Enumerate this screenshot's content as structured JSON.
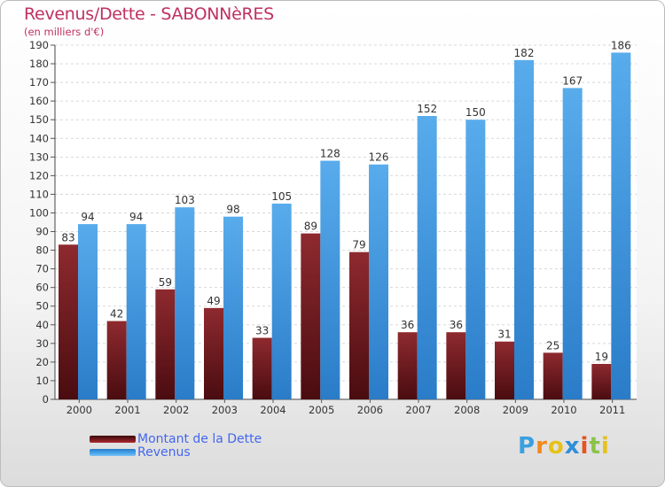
{
  "chart_data": {
    "type": "bar",
    "title": "Revenus/Dette - SABONNèRES",
    "subtitle": "(en milliers d'€)",
    "categories": [
      "2000",
      "2001",
      "2002",
      "2003",
      "2004",
      "2005",
      "2006",
      "2007",
      "2008",
      "2009",
      "2010",
      "2011"
    ],
    "series": [
      {
        "name": "Montant de la Dette",
        "color": "#7a1a1f",
        "values": [
          83,
          42,
          59,
          49,
          33,
          89,
          79,
          36,
          36,
          31,
          25,
          19
        ]
      },
      {
        "name": "Revenus",
        "color": "#3f9be0",
        "values": [
          94,
          94,
          103,
          98,
          105,
          128,
          126,
          152,
          150,
          182,
          167,
          186
        ]
      }
    ],
    "ylim": [
      0,
      190
    ],
    "yticks": [
      0,
      10,
      20,
      30,
      40,
      50,
      60,
      70,
      80,
      90,
      100,
      110,
      120,
      130,
      140,
      150,
      160,
      170,
      180,
      190
    ],
    "grid": true,
    "legend_position": "bottom-left"
  },
  "logo": {
    "letters": [
      "P",
      "r",
      "o",
      "x",
      "i",
      "t",
      "i"
    ]
  }
}
